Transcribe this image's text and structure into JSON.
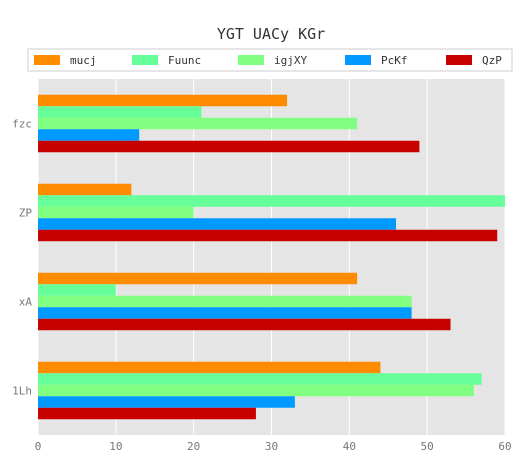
{
  "chart_data": {
    "type": "bar",
    "orientation": "horizontal",
    "title": "YGT UACy  KGr",
    "categories": [
      "1Lh",
      "xA",
      "ZP",
      "fzc"
    ],
    "series": [
      {
        "name": "mucj",
        "color": "#ff8c00",
        "values": [
          44,
          41,
          12,
          32
        ]
      },
      {
        "name": "Fuunc",
        "color": "#66ff99",
        "values": [
          57,
          10,
          60,
          21
        ]
      },
      {
        "name": "igjXY",
        "color": "#80ff80",
        "values": [
          56,
          48,
          20,
          41
        ]
      },
      {
        "name": "PcKf",
        "color": "#0099ff",
        "values": [
          33,
          48,
          46,
          13
        ]
      },
      {
        "name": "QzP",
        "color": "#c80000",
        "values": [
          28,
          53,
          59,
          49
        ]
      }
    ],
    "xlim": [
      0,
      60
    ],
    "xticks": [
      0,
      10,
      20,
      30,
      40,
      50,
      60
    ],
    "xlabel": "",
    "ylabel": "",
    "grid": true,
    "legend_position": "top"
  }
}
